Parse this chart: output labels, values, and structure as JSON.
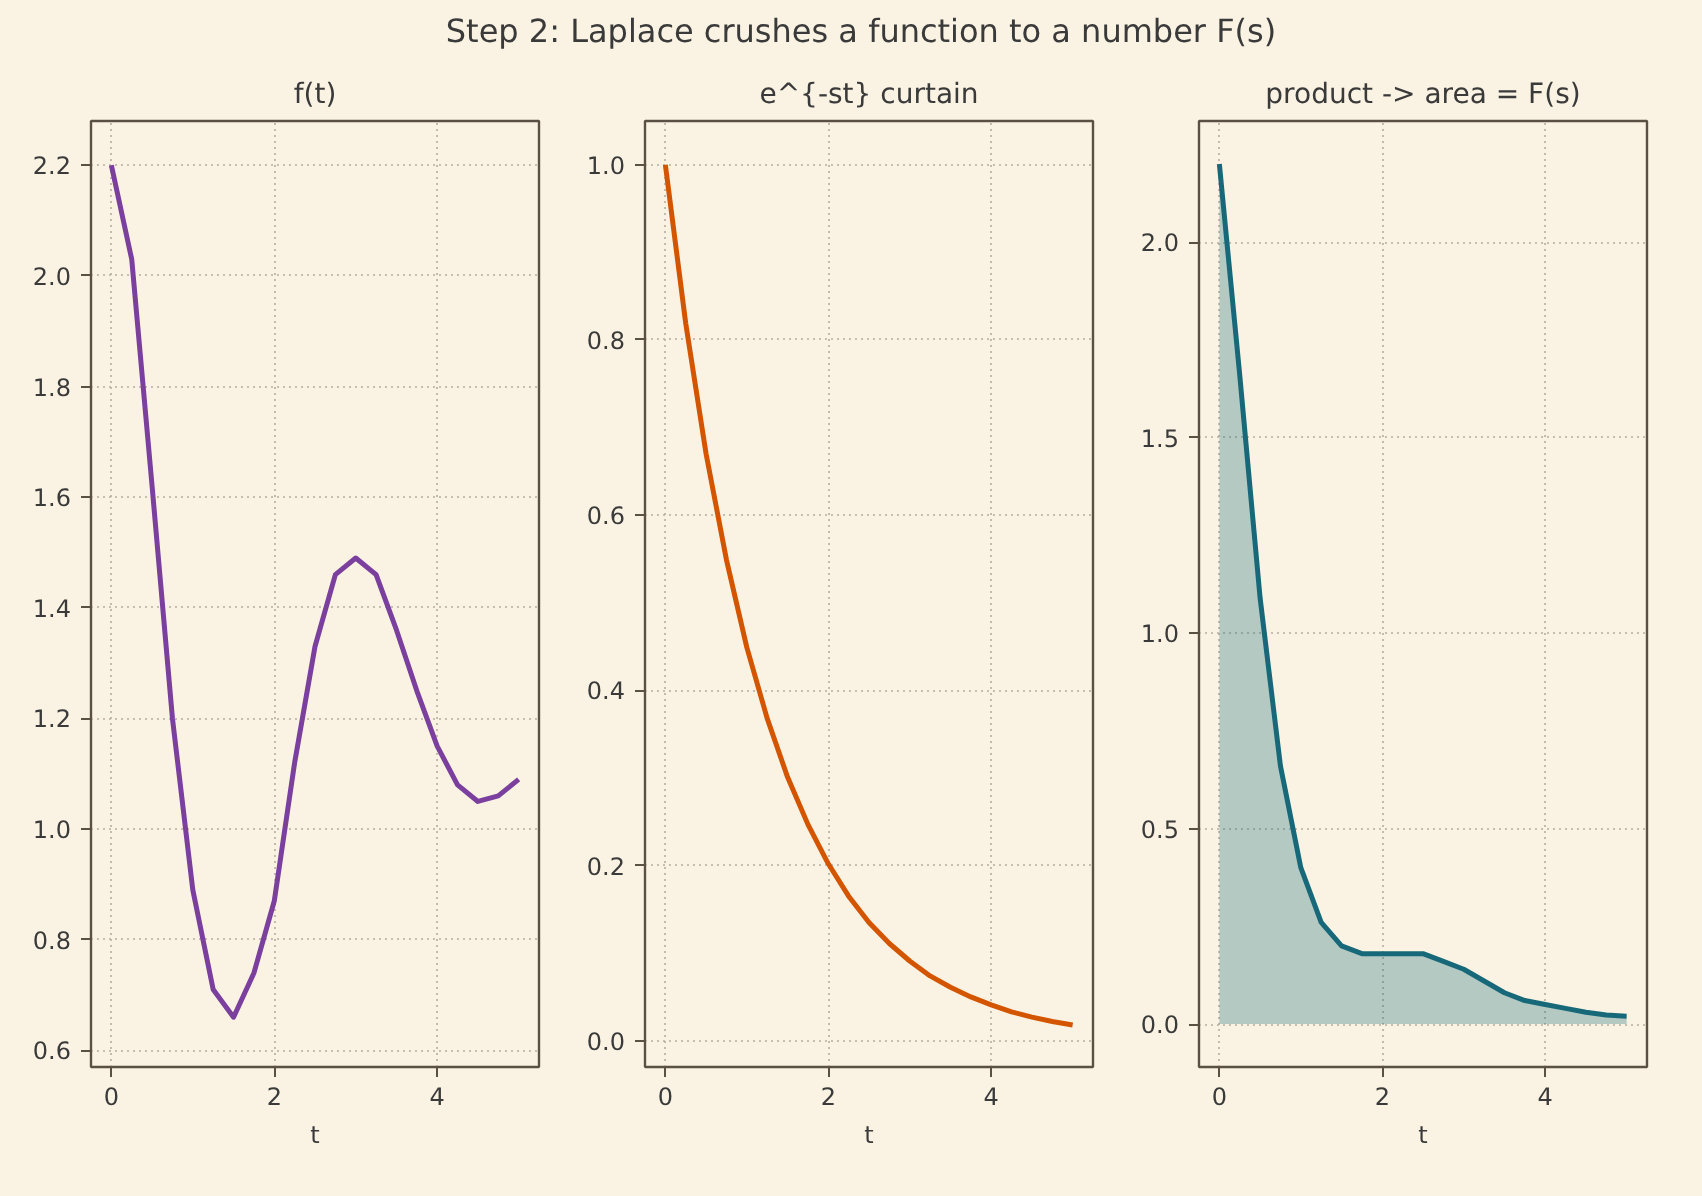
{
  "chart_data": [
    {
      "type": "line",
      "title": "f(t)",
      "xlabel": "t",
      "annotations": [
        "Step 2: Laplace crushes a function to a number F(s)"
      ],
      "x": [
        0,
        0.25,
        0.5,
        0.75,
        1,
        1.25,
        1.5,
        1.75,
        2,
        2.25,
        2.5,
        2.75,
        3,
        3.25,
        3.5,
        3.75,
        4,
        4.25,
        4.5,
        4.75,
        5
      ],
      "series": [
        {
          "color": "#7b3f9e",
          "values": [
            2.2,
            2.03,
            1.62,
            1.2,
            0.89,
            0.71,
            0.66,
            0.74,
            0.87,
            1.12,
            1.33,
            1.46,
            1.49,
            1.46,
            1.36,
            1.25,
            1.15,
            1.08,
            1.05,
            1.06,
            1.09
          ]
        }
      ],
      "xlim": [
        -0.25,
        5.25
      ],
      "ylim": [
        0.57,
        2.28
      ],
      "xticks": [
        0,
        2,
        4
      ],
      "yticks": [
        0.6,
        0.8,
        {
          "value": 1.0,
          "label": "1.0"
        },
        1.2,
        1.4,
        1.6,
        1.8,
        {
          "value": 2.0,
          "label": "2.0"
        },
        2.2
      ],
      "grid": true,
      "marker": "none",
      "line_style": "solid"
    },
    {
      "type": "line",
      "title": "e^{-st} curtain",
      "xlabel": "t",
      "x": [
        0,
        0.25,
        0.5,
        0.75,
        1,
        1.25,
        1.5,
        1.75,
        2,
        2.25,
        2.5,
        2.75,
        3,
        3.25,
        3.5,
        3.75,
        4,
        4.25,
        4.5,
        4.75,
        5
      ],
      "series": [
        {
          "color": "#d45500",
          "values": [
            1,
            0.819,
            0.67,
            0.549,
            0.449,
            0.368,
            0.301,
            0.247,
            0.202,
            0.165,
            0.135,
            0.111,
            0.091,
            0.074,
            0.061,
            0.05,
            0.041,
            0.033,
            0.027,
            0.022,
            0.018
          ]
        }
      ],
      "xlim": [
        -0.25,
        5.25
      ],
      "ylim": [
        -0.03,
        1.05
      ],
      "xticks": [
        0,
        2,
        4
      ],
      "yticks": [
        {
          "value": 0,
          "label": "0.0"
        },
        0.2,
        0.4,
        0.6,
        0.8,
        {
          "value": 1.0,
          "label": "1.0"
        }
      ],
      "grid": true,
      "marker": "none",
      "line_style": "solid"
    },
    {
      "type": "area",
      "title": "product -> area = F(s)",
      "xlabel": "t",
      "x": [
        0,
        0.25,
        0.5,
        0.75,
        1,
        1.25,
        1.5,
        1.75,
        2,
        2.25,
        2.5,
        2.75,
        3,
        3.25,
        3.5,
        3.75,
        4,
        4.25,
        4.5,
        4.75,
        5
      ],
      "series": [
        {
          "color": "#17697a",
          "values": [
            2.2,
            1.66,
            1.09,
            0.66,
            0.4,
            0.26,
            0.2,
            0.18,
            0.18,
            0.18,
            0.18,
            0.16,
            0.14,
            0.11,
            0.08,
            0.06,
            0.05,
            0.04,
            0.03,
            0.023,
            0.02
          ]
        }
      ],
      "xlim": [
        -0.25,
        5.25
      ],
      "ylim": [
        -0.11,
        2.31
      ],
      "xticks": [
        0,
        2,
        4
      ],
      "yticks": [
        {
          "value": 0,
          "label": "0.0"
        },
        0.5,
        {
          "value": 1.0,
          "label": "1.0"
        },
        1.5,
        {
          "value": 2.0,
          "label": "2.0"
        }
      ],
      "grid": true,
      "marker": "none",
      "line_style": "solid"
    }
  ]
}
